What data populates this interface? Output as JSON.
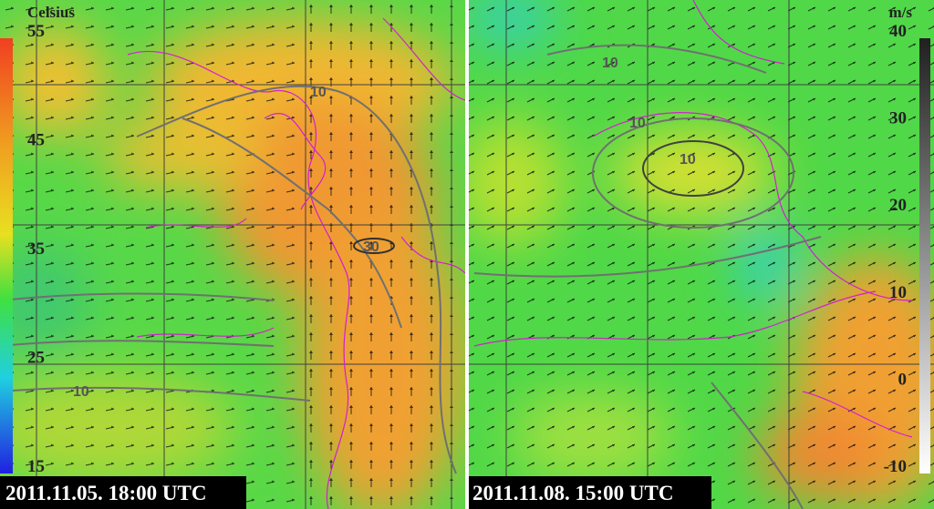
{
  "left_panel": {
    "unit": "Celsius",
    "scale_labels": [
      "55",
      "45",
      "35",
      "25",
      "15"
    ],
    "contour_labels": [
      "10",
      "30",
      "10"
    ],
    "timestamp": "2011.11.05. 18:00 UTC"
  },
  "right_panel": {
    "unit": "m/s",
    "scale_labels": [
      "40",
      "30",
      "20",
      "10",
      "0",
      "-10"
    ],
    "contour_labels": [
      "10",
      "10",
      "10"
    ],
    "timestamp": "2011.11.08. 15:00 UTC"
  }
}
